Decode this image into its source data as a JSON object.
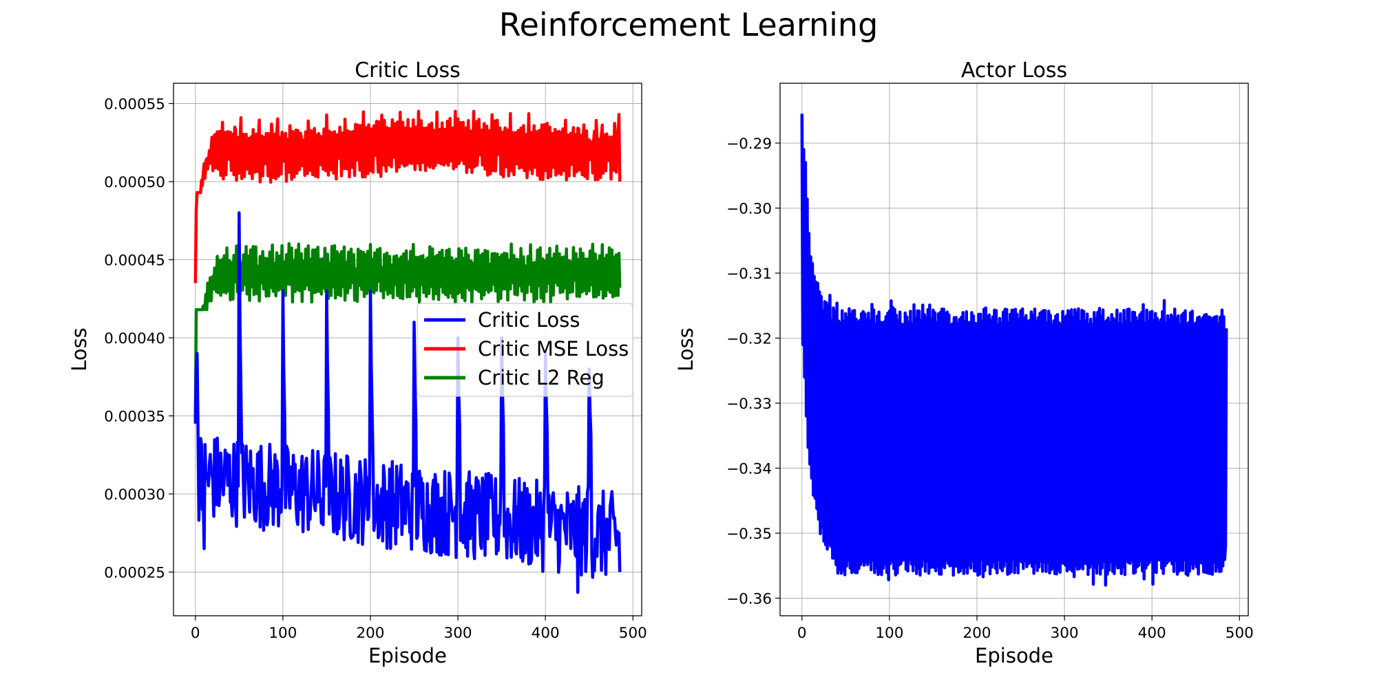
{
  "figure": {
    "title": "Reinforcement Learning"
  },
  "chart_data": [
    {
      "type": "line",
      "title": "Critic Loss",
      "xlabel": "Episode",
      "ylabel": "Loss",
      "xlim": [
        -25,
        510
      ],
      "ylim": [
        0.000222,
        0.000563
      ],
      "xticks": [
        0,
        100,
        200,
        300,
        400,
        500
      ],
      "xtick_labels": [
        "0",
        "100",
        "200",
        "300",
        "400",
        "500"
      ],
      "yticks": [
        0.00025,
        0.0003,
        0.00035,
        0.0004,
        0.00045,
        0.0005,
        0.00055
      ],
      "ytick_labels": [
        "0.00025",
        "0.00030",
        "0.00035",
        "0.00040",
        "0.00045",
        "0.00050",
        "0.00055"
      ],
      "grid": true,
      "legend": {
        "placement": "center-right"
      },
      "episodes": 486,
      "series": [
        {
          "name": "Critic Loss",
          "color": "#0000ff",
          "summary": {
            "start": 0.000345,
            "early_peak": 0.00039,
            "early_dip": 0.000265,
            "trend_start": 0.00031,
            "trend_end": 0.00027,
            "end": 0.00025,
            "min": 0.000237
          },
          "peaks": [
            [
              0,
              0.00039
            ],
            [
              50,
              0.00048
            ],
            [
              100,
              0.00043
            ],
            [
              150,
              0.00043
            ],
            [
              200,
              0.00043
            ],
            [
              250,
              0.00041
            ],
            [
              300,
              0.0004
            ],
            [
              350,
              0.0004
            ],
            [
              400,
              0.00039
            ],
            [
              450,
              0.00038
            ]
          ]
        },
        {
          "name": "Critic MSE Loss",
          "color": "#ff0000",
          "summary": {
            "start": 0.000435,
            "early": 0.00048,
            "band_low": 0.000502,
            "band_high": 0.000538,
            "max": 0.000545,
            "end": 0.0005
          }
        },
        {
          "name": "Critic L2 Reg",
          "color": "#008000",
          "summary": {
            "start": 0.000348,
            "early": 0.00038,
            "band_low": 0.000425,
            "band_high": 0.000457,
            "max": 0.000465,
            "end": 0.000432
          }
        }
      ]
    },
    {
      "type": "line",
      "title": "Actor Loss",
      "xlabel": "Episode",
      "ylabel": "Loss",
      "xlim": [
        -25,
        510
      ],
      "ylim": [
        -0.3627,
        -0.2808
      ],
      "xticks": [
        0,
        100,
        200,
        300,
        400,
        500
      ],
      "xtick_labels": [
        "0",
        "100",
        "200",
        "300",
        "400",
        "500"
      ],
      "yticks": [
        -0.36,
        -0.35,
        -0.34,
        -0.33,
        -0.32,
        -0.31,
        -0.3,
        -0.29
      ],
      "ytick_labels": [
        "−0.36",
        "−0.35",
        "−0.34",
        "−0.33",
        "−0.32",
        "−0.31",
        "−0.30",
        "−0.29"
      ],
      "grid": true,
      "episodes": 486,
      "series": [
        {
          "name": "Actor Loss",
          "color": "#0000ff",
          "summary": {
            "start": -0.2855,
            "early_low": -0.338,
            "band_high": -0.3155,
            "band_low": -0.3565,
            "max": -0.2855,
            "min": -0.3585,
            "end": -0.3185
          }
        }
      ]
    }
  ]
}
